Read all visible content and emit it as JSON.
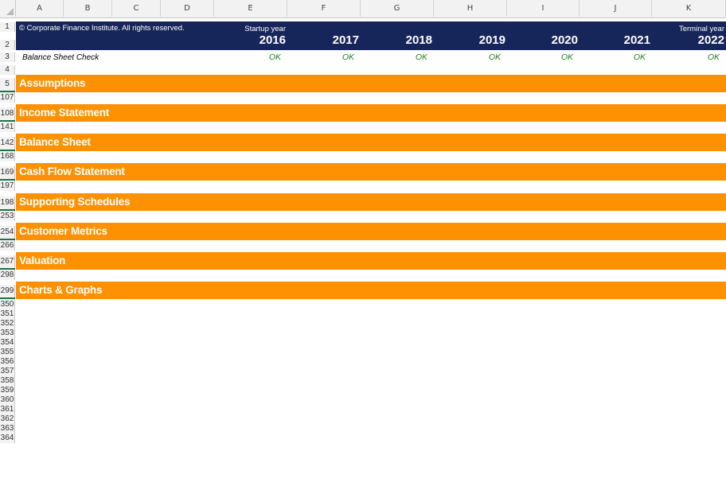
{
  "columns": [
    "A",
    "B",
    "C",
    "D",
    "E",
    "F",
    "G",
    "H",
    "I",
    "J",
    "K"
  ],
  "header": {
    "copyright": "© Corporate Finance Institute. All rights reserved.",
    "startup_label": "Startup year",
    "terminal_label": "Terminal year",
    "years": [
      "2016",
      "2017",
      "2018",
      "2019",
      "2020",
      "2021",
      "2022"
    ]
  },
  "check": {
    "label": "Balance Sheet Check",
    "values": [
      "OK",
      "OK",
      "OK",
      "OK",
      "OK",
      "OK",
      "OK"
    ]
  },
  "sections": [
    {
      "label": "Assumptions"
    },
    {
      "label": "Income Statement"
    },
    {
      "label": "Balance Sheet"
    },
    {
      "label": "Cash Flow Statement"
    },
    {
      "label": "Supporting Schedules"
    },
    {
      "label": "Customer Metrics"
    },
    {
      "label": "Valuation"
    },
    {
      "label": "Charts & Graphs"
    }
  ],
  "rows": {
    "r1": "1",
    "r2": "2",
    "r3": "3",
    "r4": "4",
    "r5": "5",
    "r107": "107",
    "r108": "108",
    "r141": "141",
    "r142": "142",
    "r168": "168",
    "r169": "169",
    "r197": "197",
    "r198": "198",
    "r253": "253",
    "r254": "254",
    "r266": "266",
    "r267": "267",
    "r298": "298",
    "r299": "299",
    "r350": "350",
    "r351": "351",
    "r352": "352",
    "r353": "353",
    "r354": "354",
    "r355": "355",
    "r356": "356",
    "r357": "357",
    "r358": "358",
    "r359": "359",
    "r360": "360",
    "r361": "361",
    "r362": "362",
    "r363": "363",
    "r364": "364"
  }
}
